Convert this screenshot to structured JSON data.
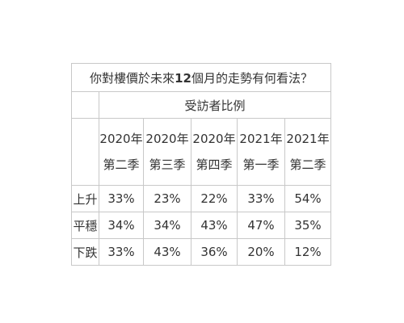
{
  "table": {
    "title_parts": [
      "你對樓價於未來",
      "12",
      "個月的走勢有何看法？"
    ],
    "group_header": "受訪者比例"
  },
  "chart_data": {
    "type": "table",
    "title": "你對樓價於未來12個月的走勢有何看法？",
    "group_header": "受訪者比例",
    "columns": [
      {
        "year": "2020年",
        "quarter": "第二季"
      },
      {
        "year": "2020年",
        "quarter": "第三季"
      },
      {
        "year": "2020年",
        "quarter": "第四季"
      },
      {
        "year": "2021年",
        "quarter": "第一季"
      },
      {
        "year": "2021年",
        "quarter": "第二季"
      }
    ],
    "rows": [
      {
        "label": "上升",
        "values": [
          "33%",
          "23%",
          "22%",
          "33%",
          "54%"
        ]
      },
      {
        "label": "平穩",
        "values": [
          "34%",
          "34%",
          "43%",
          "47%",
          "35%"
        ]
      },
      {
        "label": "下跌",
        "values": [
          "33%",
          "43%",
          "36%",
          "20%",
          "12%"
        ]
      }
    ]
  }
}
